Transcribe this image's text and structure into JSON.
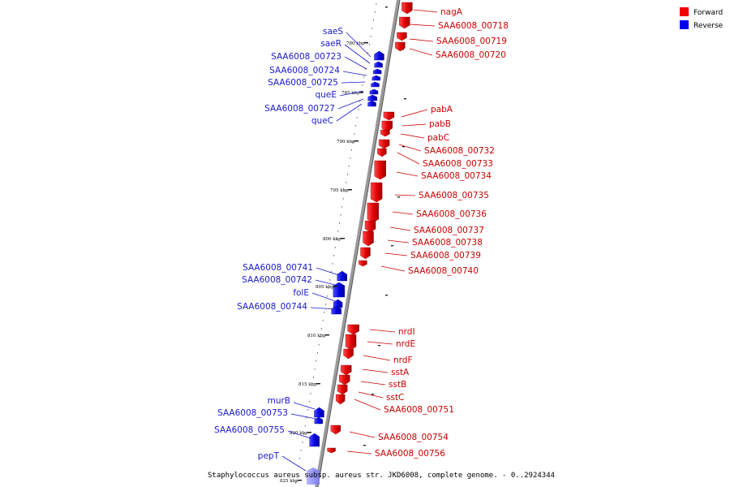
{
  "legend": {
    "forward_label": "Forward",
    "reverse_label": "Reverse",
    "forward_color": "#ee0000",
    "reverse_color": "#0000ee"
  },
  "title": "Staphylococcus aureus subsp. aureus str. JKD6008, complete genome. - 0..2924344",
  "ticks": [
    "780 kbp",
    "785 kbp",
    "790 kbp",
    "795 kbp",
    "800 kbp",
    "805 kbp",
    "810 kbp",
    "815 kbp",
    "820 kbp",
    "825 kbp"
  ],
  "genes_forward": [
    "nagA",
    "SAA6008_00718",
    "SAA6008_00719",
    "SAA6008_00720",
    "pabA",
    "pabB",
    "pabC",
    "SAA6008_00732",
    "SAA6008_00733",
    "SAA6008_00734",
    "SAA6008_00735",
    "SAA6008_00736",
    "SAA6008_00737",
    "SAA6008_00738",
    "SAA6008_00739",
    "SAA6008_00740",
    "nrdI",
    "nrdE",
    "nrdF",
    "sstA",
    "sstB",
    "sstC",
    "SAA6008_00751",
    "SAA6008_00754",
    "SAA6008_00756"
  ],
  "genes_reverse": [
    "saeS",
    "saeR",
    "SAA6008_00723",
    "SAA6008_00724",
    "SAA6008_00725",
    "queE",
    "SAA6008_00727",
    "queC",
    "SAA6008_00741",
    "SAA6008_00742",
    "folE",
    "SAA6008_00744",
    "murB",
    "SAA6008_00753",
    "SAA6008_00755",
    "pepT"
  ]
}
